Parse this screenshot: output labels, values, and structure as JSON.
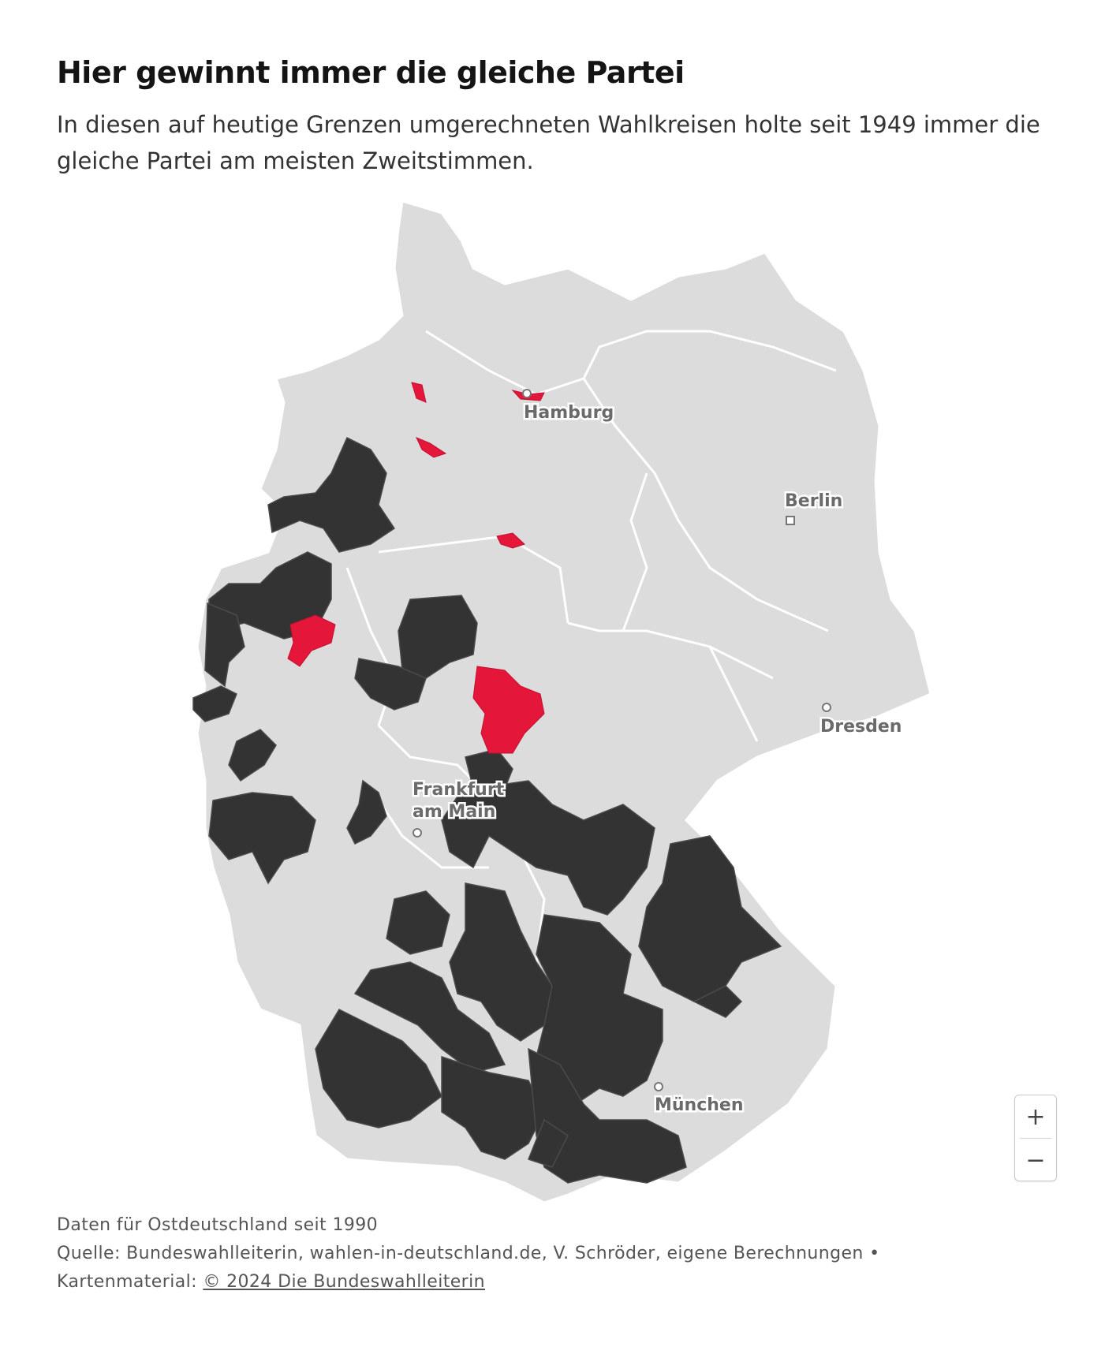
{
  "header": {
    "title": "Hier gewinnt immer die gleiche Partei",
    "subtitle": "In diesen auf heutige Grenzen umgerechneten Wahlkreisen holte seit 1949 immer die gleiche Partei am meisten Zweitstimmen."
  },
  "colors": {
    "background": "#ffffff",
    "land": "#dcdcdc",
    "always_same_party_dark": "#333333",
    "always_same_party_red": "#e4163a",
    "borders": "#ffffff"
  },
  "cities": [
    {
      "name": "Hamburg",
      "label": "Hamburg",
      "marker": "circle"
    },
    {
      "name": "Berlin",
      "label": "Berlin",
      "marker": "square"
    },
    {
      "name": "Dresden",
      "label": "Dresden",
      "marker": "circle"
    },
    {
      "name": "Frankfurt",
      "label_line1": "Frankfurt",
      "label_line2": "am Main",
      "marker": "circle"
    },
    {
      "name": "München",
      "label": "München",
      "marker": "circle"
    }
  ],
  "zoom": {
    "in_label": "+",
    "out_label": "−"
  },
  "footer": {
    "note": "Daten für Ostdeutschland seit 1990",
    "source": "Quelle: Bundeswahlleiterin, wahlen-in-deutschland.de, V. Schröder, eigene Berechnungen •",
    "map_credit_prefix": "Kartenmaterial:",
    "map_credit_link": "© 2024 Die Bundeswahlleiterin"
  }
}
